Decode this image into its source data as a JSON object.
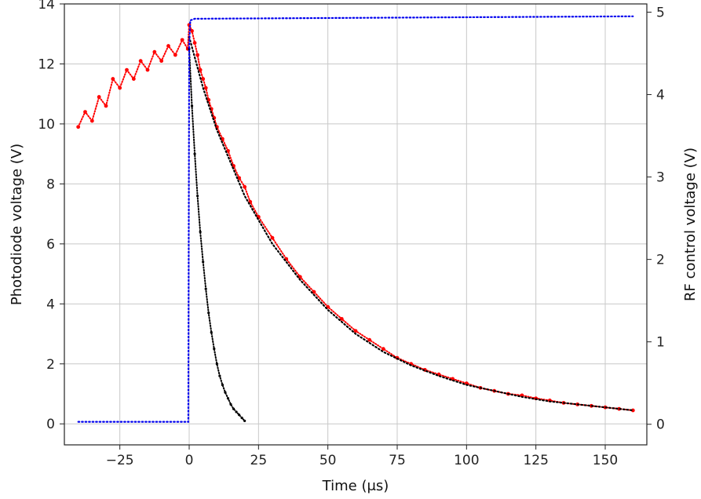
{
  "chart_data": {
    "type": "line",
    "title": "",
    "xlabel": "Time (μs)",
    "ylabel": "Photodiode voltage (V)",
    "y2label": "RF control voltage (V)",
    "xlim": [
      -45,
      165
    ],
    "ylim": [
      -0.7,
      14.0
    ],
    "y2lim": [
      -0.25,
      5.1
    ],
    "grid": true,
    "xticks": [
      -25,
      0,
      25,
      50,
      75,
      100,
      125,
      150
    ],
    "xtick_labels": [
      "−25",
      "0",
      "25",
      "50",
      "75",
      "100",
      "125",
      "150"
    ],
    "yticks": [
      0,
      2,
      4,
      6,
      8,
      10,
      12,
      14
    ],
    "y2ticks": [
      0,
      1,
      2,
      3,
      4,
      5
    ],
    "series": [
      {
        "axis": "left",
        "color": "#ff0000",
        "style": "dotted-markers",
        "x": [
          -40,
          -37.5,
          -35,
          -32.5,
          -30,
          -27.5,
          -25,
          -22.5,
          -20,
          -17.5,
          -15,
          -12.5,
          -10,
          -7.5,
          -5,
          -2.5,
          -0.5,
          0,
          1,
          2,
          3,
          4,
          5,
          6,
          7,
          8,
          9,
          10,
          12,
          14,
          16,
          18,
          20,
          22,
          25,
          30,
          35,
          40,
          45,
          50,
          55,
          60,
          65,
          70,
          75,
          80,
          85,
          90,
          95,
          100,
          105,
          110,
          115,
          120,
          125,
          130,
          135,
          140,
          145,
          150,
          155,
          160
        ],
        "values": [
          9.9,
          10.4,
          10.1,
          10.9,
          10.6,
          11.5,
          11.2,
          11.8,
          11.5,
          12.1,
          11.8,
          12.4,
          12.1,
          12.6,
          12.3,
          12.8,
          12.5,
          13.3,
          13.1,
          12.7,
          12.3,
          11.8,
          11.5,
          11.2,
          10.8,
          10.5,
          10.2,
          9.9,
          9.5,
          9.1,
          8.6,
          8.2,
          7.9,
          7.4,
          6.9,
          6.2,
          5.5,
          4.9,
          4.4,
          3.9,
          3.5,
          3.1,
          2.8,
          2.5,
          2.2,
          2.0,
          1.8,
          1.65,
          1.5,
          1.35,
          1.2,
          1.1,
          1.0,
          0.95,
          0.85,
          0.78,
          0.7,
          0.65,
          0.6,
          0.55,
          0.5,
          0.45
        ]
      },
      {
        "axis": "left",
        "color": "#000000",
        "style": "dotted-markers",
        "x": [
          0,
          1,
          2,
          3,
          4,
          5,
          6,
          7,
          8,
          9,
          10,
          11,
          12,
          13,
          14,
          15,
          16,
          17,
          18,
          19,
          20
        ],
        "values": [
          12.5,
          10.6,
          9.0,
          7.6,
          6.4,
          5.4,
          4.5,
          3.7,
          3.05,
          2.5,
          2.0,
          1.6,
          1.3,
          1.05,
          0.85,
          0.65,
          0.5,
          0.4,
          0.3,
          0.2,
          0.1
        ]
      },
      {
        "axis": "left",
        "color": "#000000",
        "style": "dotted",
        "x": [
          0,
          5,
          10,
          15,
          20,
          25,
          30,
          40,
          50,
          60,
          70,
          80,
          90,
          100,
          110,
          120,
          130,
          140,
          150,
          160
        ],
        "values": [
          12.9,
          11.2,
          9.8,
          8.7,
          7.6,
          6.8,
          6.0,
          4.8,
          3.8,
          3.0,
          2.4,
          1.95,
          1.6,
          1.3,
          1.1,
          0.9,
          0.75,
          0.65,
          0.55,
          0.45
        ]
      },
      {
        "axis": "right",
        "color": "#0000ee",
        "style": "dotted",
        "x": [
          -40,
          -0.3,
          0,
          0.4,
          2,
          160
        ],
        "values": [
          0.03,
          0.03,
          4.6,
          4.9,
          4.92,
          4.95
        ]
      }
    ]
  }
}
